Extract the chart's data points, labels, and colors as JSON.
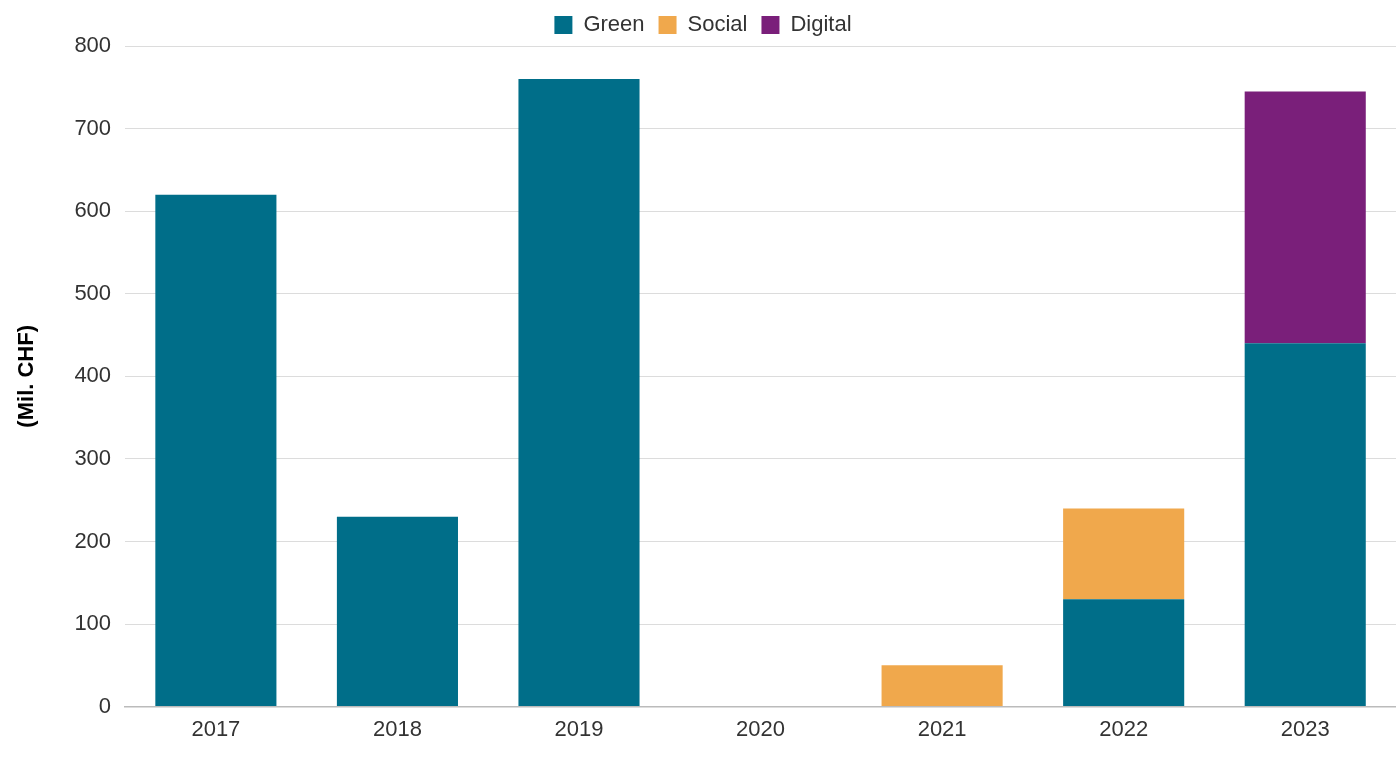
{
  "chart_data": {
    "type": "bar",
    "stacked": true,
    "ylabel": "(Mil. CHF)",
    "categories": [
      "2017",
      "2018",
      "2019",
      "2020",
      "2021",
      "2022",
      "2023"
    ],
    "series": [
      {
        "name": "Green",
        "color": "#006e89",
        "values": [
          620,
          230,
          760,
          null,
          null,
          130,
          440
        ]
      },
      {
        "name": "Social",
        "color": "#f0a84c",
        "values": [
          null,
          null,
          null,
          null,
          50,
          110,
          null
        ]
      },
      {
        "name": "Digital",
        "color": "#7a1f7a",
        "values": [
          null,
          null,
          null,
          null,
          null,
          null,
          305
        ]
      }
    ],
    "ylim": [
      0,
      800
    ],
    "yticks": [
      0,
      100,
      200,
      300,
      400,
      500,
      600,
      700,
      800
    ],
    "grid": "y",
    "legend": "top"
  }
}
